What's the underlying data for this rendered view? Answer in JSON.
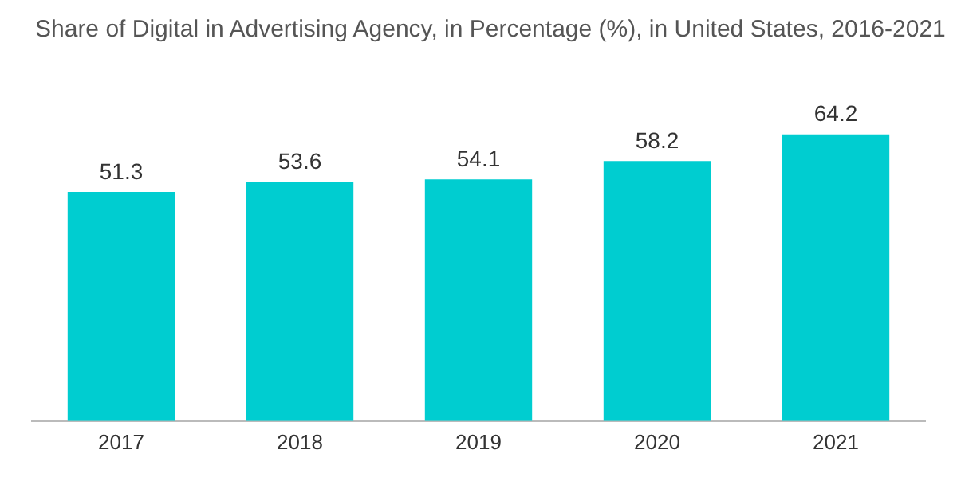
{
  "chart_data": {
    "type": "bar",
    "title": "Share of Digital in Advertising Agency, in Percentage (%), in United States, 2016-2021",
    "categories": [
      "2017",
      "2018",
      "2019",
      "2020",
      "2021"
    ],
    "values": [
      51.3,
      53.6,
      54.1,
      58.2,
      64.2
    ],
    "color": "#00cdd0",
    "data_labels": true,
    "grid": false,
    "legend": false,
    "tick_labels": "x"
  }
}
